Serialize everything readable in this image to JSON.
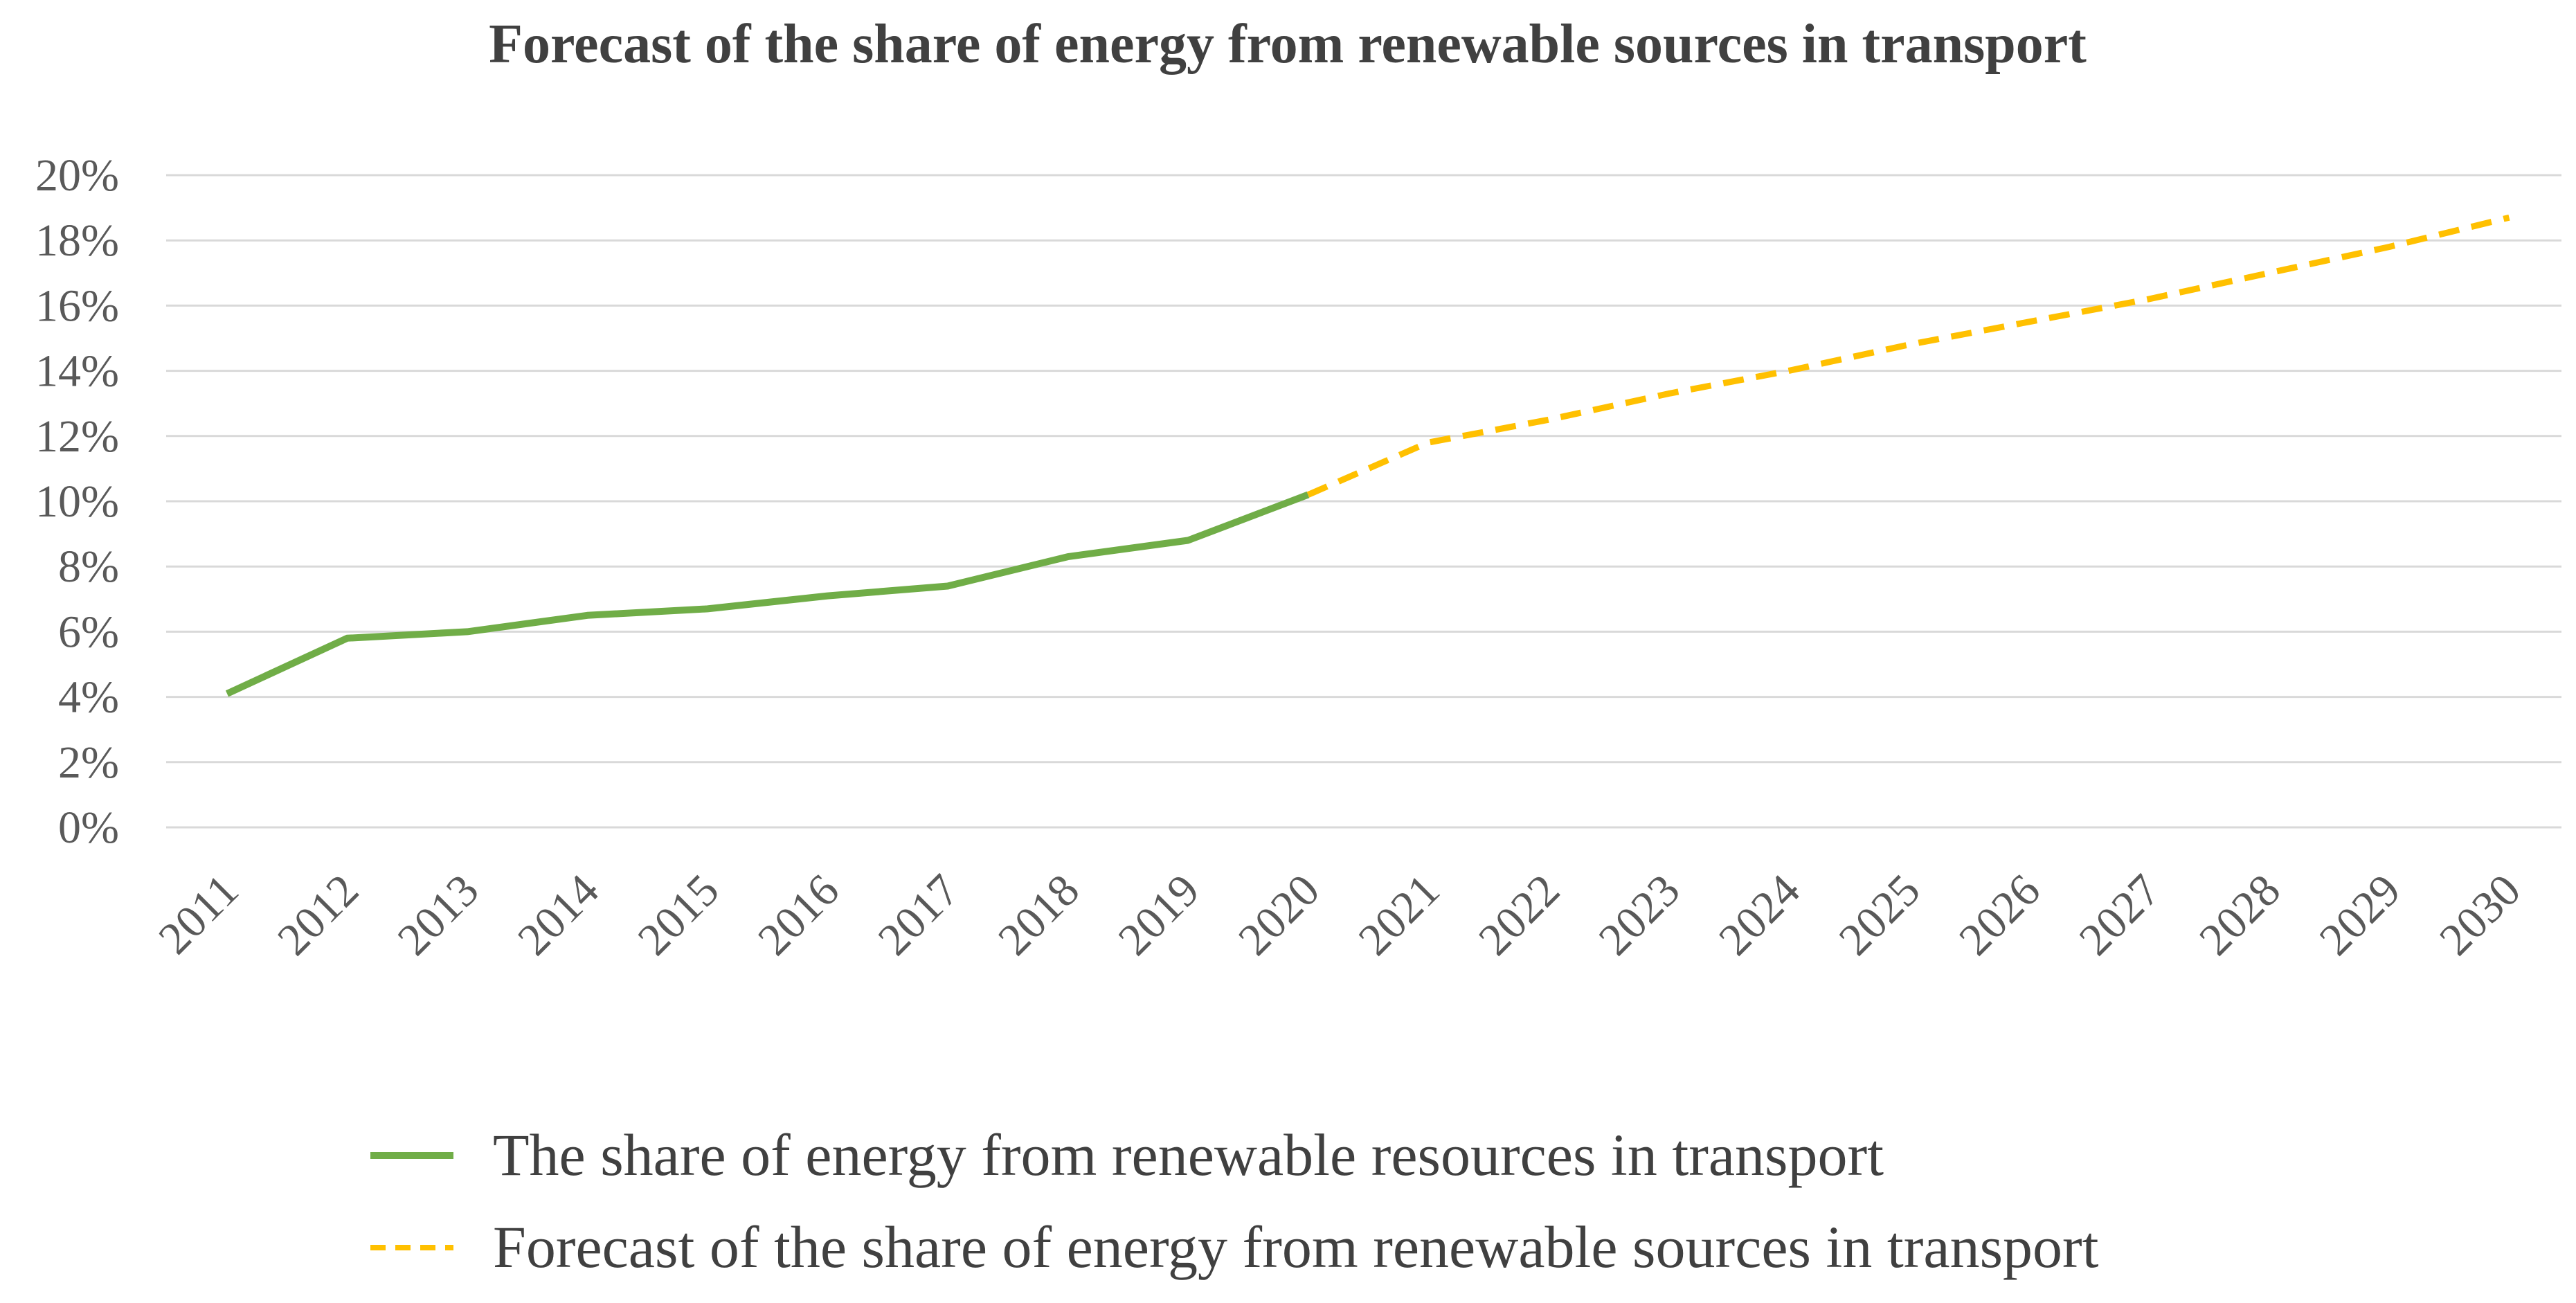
{
  "chart_data": {
    "type": "line",
    "title": "Forecast of the share of energy from renewable sources in transport",
    "xlabel": "",
    "ylabel": "",
    "ylim": [
      0,
      20
    ],
    "y_ticks": [
      0,
      2,
      4,
      6,
      8,
      10,
      12,
      14,
      16,
      18,
      20
    ],
    "y_tick_labels": [
      "0%",
      "2%",
      "4%",
      "6%",
      "8%",
      "10%",
      "12%",
      "14%",
      "16%",
      "18%",
      "20%"
    ],
    "categories": [
      "2011",
      "2012",
      "2013",
      "2014",
      "2015",
      "2016",
      "2017",
      "2018",
      "2019",
      "2020",
      "2021",
      "2022",
      "2023",
      "2024",
      "2025",
      "2026",
      "2027",
      "2028",
      "2029",
      "2030"
    ],
    "grid": true,
    "legend_position": "bottom",
    "series": [
      {
        "name": "The share of energy from renewable resources in transport",
        "style": "solid",
        "color": "#70ad47",
        "values": [
          4.1,
          5.8,
          6.0,
          6.5,
          6.7,
          7.1,
          7.4,
          8.3,
          8.8,
          10.2,
          null,
          null,
          null,
          null,
          null,
          null,
          null,
          null,
          null,
          null
        ]
      },
      {
        "name": "Forecast of the share of energy from renewable sources in transport",
        "style": "dashed",
        "color": "#ffc000",
        "values": [
          null,
          null,
          null,
          null,
          null,
          null,
          null,
          null,
          null,
          10.2,
          11.8,
          12.5,
          13.3,
          14.0,
          14.8,
          15.5,
          16.2,
          17.0,
          17.8,
          18.7
        ]
      }
    ]
  },
  "colors": {
    "grid": "#d9d9d9",
    "title": "#404040",
    "tick_text": "#595959"
  }
}
